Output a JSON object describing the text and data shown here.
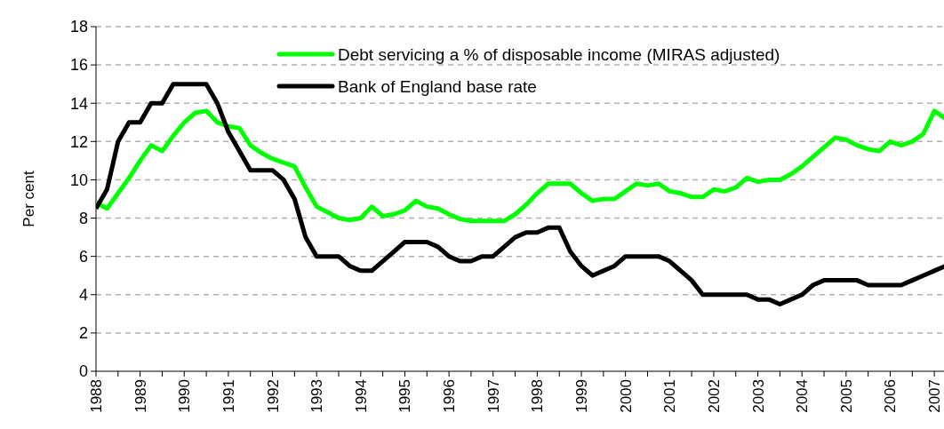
{
  "chart_data": {
    "type": "line",
    "ylabel": "Per cent",
    "xlim": [
      1988,
      2007.38
    ],
    "ylim": [
      0,
      18
    ],
    "yticks": [
      0,
      2,
      4,
      6,
      8,
      10,
      12,
      14,
      16,
      18
    ],
    "xticks": [
      1988,
      {
        "value": 1988.5,
        "label": null
      },
      1989,
      {
        "value": 1989.5,
        "label": null
      },
      1990,
      {
        "value": 1990.5,
        "label": null
      },
      1991,
      {
        "value": 1991.5,
        "label": null
      },
      1992,
      {
        "value": 1992.5,
        "label": null
      },
      1993,
      {
        "value": 1993.5,
        "label": null
      },
      1994,
      {
        "value": 1994.5,
        "label": null
      },
      1995,
      {
        "value": 1995.5,
        "label": null
      },
      1996,
      {
        "value": 1996.5,
        "label": null
      },
      1997,
      {
        "value": 1997.5,
        "label": null
      },
      1998,
      {
        "value": 1998.5,
        "label": null
      },
      1999,
      {
        "value": 1999.5,
        "label": null
      },
      2000,
      {
        "value": 2000.5,
        "label": null
      },
      2001,
      {
        "value": 2001.5,
        "label": null
      },
      2002,
      {
        "value": 2002.5,
        "label": null
      },
      2003,
      {
        "value": 2003.5,
        "label": null
      },
      2004,
      {
        "value": 2004.5,
        "label": null
      },
      2005,
      {
        "value": 2005.5,
        "label": null
      },
      2006,
      {
        "value": 2006.5,
        "label": null
      },
      2007
    ],
    "grid": "y",
    "legend": "top right",
    "marker": "none",
    "line_style": "solid",
    "x": [
      1988,
      1988.25,
      1988.5,
      1988.75,
      1989,
      1989.25,
      1989.5,
      1989.75,
      1990,
      1990.25,
      1990.5,
      1990.75,
      1991,
      1991.25,
      1991.5,
      1991.75,
      1992,
      1992.25,
      1992.5,
      1992.75,
      1993,
      1993.25,
      1993.5,
      1993.75,
      1994,
      1994.25,
      1994.5,
      1994.75,
      1995,
      1995.25,
      1995.5,
      1995.75,
      1996,
      1996.25,
      1996.5,
      1996.75,
      1997,
      1997.25,
      1997.5,
      1997.75,
      1998,
      1998.25,
      1998.5,
      1998.75,
      1999,
      1999.25,
      1999.5,
      1999.75,
      2000,
      2000.25,
      2000.5,
      2000.75,
      2001,
      2001.25,
      2001.5,
      2001.75,
      2002,
      2002.25,
      2002.5,
      2002.75,
      2003,
      2003.25,
      2003.5,
      2003.75,
      2004,
      2004.25,
      2004.5,
      2004.75,
      2005,
      2005.25,
      2005.5,
      2005.75,
      2006,
      2006.25,
      2006.5,
      2006.75,
      2007,
      2007.25
    ],
    "series": [
      {
        "name": "Debt servicing a % of disposable income (MIRAS adjusted)",
        "color": "#00ff00",
        "values": [
          8.8,
          8.5,
          9.3,
          10.1,
          11,
          11.8,
          11.5,
          12.3,
          13,
          13.5,
          13.6,
          13,
          12.8,
          12.7,
          11.8,
          11.4,
          11.1,
          10.9,
          10.7,
          9.6,
          8.6,
          8.3,
          8,
          7.9,
          8,
          8.6,
          8.1,
          8.2,
          8.4,
          8.9,
          8.6,
          8.5,
          8.2,
          7.95,
          7.85,
          7.85,
          7.85,
          7.85,
          8.2,
          8.7,
          9.3,
          9.8,
          9.8,
          9.8,
          9.3,
          8.9,
          9,
          9,
          9.4,
          9.8,
          9.7,
          9.8,
          9.4,
          9.3,
          9.1,
          9.1,
          9.5,
          9.4,
          9.6,
          10.1,
          9.9,
          10,
          10,
          10.3,
          10.7,
          11.2,
          11.7,
          12.2,
          12.1,
          11.8,
          11.6,
          11.5,
          12,
          11.8,
          12,
          12.4,
          13.6,
          13.2
        ]
      },
      {
        "name": "Bank of England base rate",
        "color": "#000000",
        "values": [
          8.5,
          9.5,
          12,
          13,
          13,
          14,
          14,
          15,
          15,
          15,
          15,
          14,
          12.5,
          11.5,
          10.5,
          10.5,
          10.5,
          10,
          9,
          7,
          6,
          6,
          6,
          5.5,
          5.25,
          5.25,
          5.75,
          6.25,
          6.75,
          6.75,
          6.75,
          6.5,
          6,
          5.75,
          5.75,
          6,
          6,
          6.5,
          7,
          7.25,
          7.25,
          7.5,
          7.5,
          6.25,
          5.5,
          5,
          5.25,
          5.5,
          6,
          6,
          6,
          6,
          5.75,
          5.25,
          4.75,
          4,
          4,
          4,
          4,
          4,
          3.75,
          3.75,
          3.5,
          3.75,
          4,
          4.5,
          4.75,
          4.75,
          4.75,
          4.75,
          4.5,
          4.5,
          4.5,
          4.5,
          4.75,
          5,
          5.25,
          5.5
        ]
      }
    ]
  }
}
